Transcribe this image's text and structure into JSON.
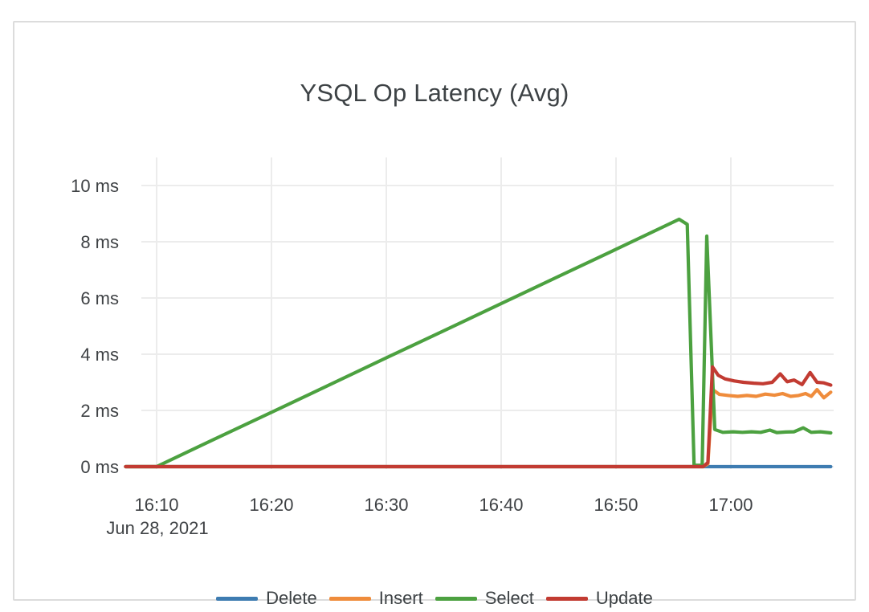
{
  "card": {
    "title": "YSQL Op Latency (Avg)"
  },
  "colors": {
    "background": "#ffffff",
    "card_border": "#dcdcdc",
    "grid": "#ececec",
    "text": "#3f4245",
    "series_delete": "#3e7cb1",
    "series_insert": "#ef8c3c",
    "series_select": "#4ca140",
    "series_update": "#c23b32"
  },
  "chart_data": {
    "type": "line",
    "title": "YSQL Op Latency (Avg)",
    "xlabel": "",
    "ylabel": "",
    "units": "ms",
    "grid": true,
    "legend_position": "bottom",
    "x_axis": {
      "date_label": "Jun 28, 2021",
      "range_minutes_after_1600": [
        7.3,
        68.7
      ],
      "ticks": [
        {
          "t": 10,
          "label": "16:10"
        },
        {
          "t": 20,
          "label": "16:20"
        },
        {
          "t": 30,
          "label": "16:30"
        },
        {
          "t": 40,
          "label": "16:40"
        },
        {
          "t": 50,
          "label": "16:50"
        },
        {
          "t": 60,
          "label": "17:00"
        }
      ]
    },
    "y_axis": {
      "ylim": [
        0,
        10
      ],
      "ticks": [
        {
          "v": 0,
          "label": "0 ms"
        },
        {
          "v": 2,
          "label": "2 ms"
        },
        {
          "v": 4,
          "label": "4 ms"
        },
        {
          "v": 6,
          "label": "6 ms"
        },
        {
          "v": 8,
          "label": "8 ms"
        },
        {
          "v": 10,
          "label": "10 ms"
        }
      ]
    },
    "series": [
      {
        "name": "Delete",
        "color": "#3e7cb1",
        "points": [
          [
            7.3,
            0
          ],
          [
            68.7,
            0
          ]
        ]
      },
      {
        "name": "Insert",
        "color": "#ef8c3c",
        "points": [
          [
            7.3,
            0
          ],
          [
            57.6,
            0
          ],
          [
            58,
            0.1
          ],
          [
            58.4,
            2.75
          ],
          [
            59,
            2.57
          ],
          [
            59.8,
            2.53
          ],
          [
            60.6,
            2.5
          ],
          [
            61.4,
            2.53
          ],
          [
            62.2,
            2.5
          ],
          [
            63,
            2.58
          ],
          [
            63.8,
            2.54
          ],
          [
            64.5,
            2.6
          ],
          [
            65.2,
            2.5
          ],
          [
            65.9,
            2.53
          ],
          [
            66.5,
            2.6
          ],
          [
            67,
            2.5
          ],
          [
            67.5,
            2.74
          ],
          [
            68.1,
            2.45
          ],
          [
            68.7,
            2.65
          ]
        ]
      },
      {
        "name": "Select",
        "color": "#4ca140",
        "points": [
          [
            7.3,
            0
          ],
          [
            10,
            0
          ],
          [
            15,
            0.97
          ],
          [
            20,
            1.93
          ],
          [
            25,
            2.9
          ],
          [
            30,
            3.87
          ],
          [
            35,
            4.83
          ],
          [
            40,
            5.8
          ],
          [
            45,
            6.77
          ],
          [
            50,
            7.73
          ],
          [
            55.5,
            8.8
          ],
          [
            56.2,
            8.62
          ],
          [
            56.8,
            0.05
          ],
          [
            57.5,
            0.05
          ],
          [
            57.9,
            8.2
          ],
          [
            58.6,
            1.32
          ],
          [
            59.3,
            1.22
          ],
          [
            60.2,
            1.24
          ],
          [
            61,
            1.22
          ],
          [
            61.8,
            1.24
          ],
          [
            62.6,
            1.22
          ],
          [
            63.4,
            1.3
          ],
          [
            64,
            1.21
          ],
          [
            64.8,
            1.23
          ],
          [
            65.5,
            1.24
          ],
          [
            66.3,
            1.38
          ],
          [
            67,
            1.22
          ],
          [
            67.8,
            1.24
          ],
          [
            68.7,
            1.2
          ]
        ]
      },
      {
        "name": "Update",
        "color": "#c23b32",
        "points": [
          [
            7.3,
            0
          ],
          [
            57.6,
            0
          ],
          [
            58,
            0.15
          ],
          [
            58.4,
            3.55
          ],
          [
            58.9,
            3.25
          ],
          [
            59.5,
            3.12
          ],
          [
            60.3,
            3.05
          ],
          [
            61.1,
            3.0
          ],
          [
            62,
            2.97
          ],
          [
            62.8,
            2.95
          ],
          [
            63.6,
            3.0
          ],
          [
            64.3,
            3.3
          ],
          [
            64.9,
            3.02
          ],
          [
            65.5,
            3.08
          ],
          [
            66.2,
            2.92
          ],
          [
            66.9,
            3.35
          ],
          [
            67.5,
            3.0
          ],
          [
            68.1,
            2.98
          ],
          [
            68.7,
            2.9
          ]
        ]
      }
    ]
  }
}
